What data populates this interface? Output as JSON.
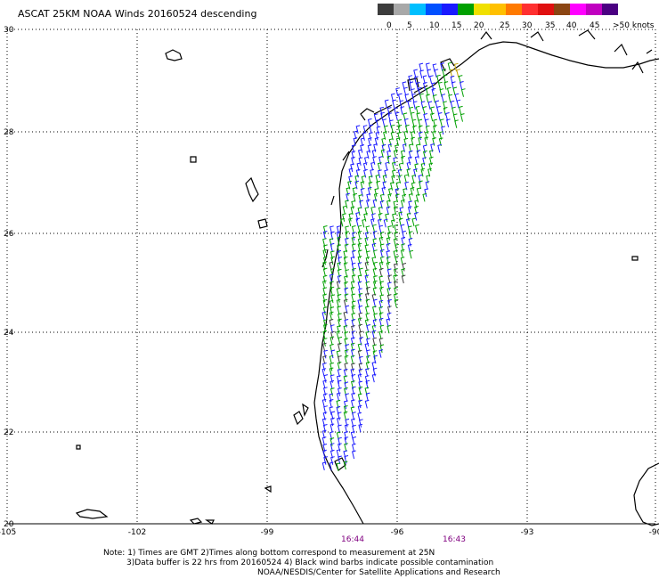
{
  "title": "ASCAT 25KM NOAA Winds 20160524 descending",
  "legend": {
    "colors": [
      "#3c3c3c",
      "#a8a8a8",
      "#00bfff",
      "#0050ff",
      "#1a1aff",
      "#00a000",
      "#f0e000",
      "#ffc000",
      "#ff7a00",
      "#ff3030",
      "#e01010",
      "#8b4513",
      "#ff00ff",
      "#c000c0",
      "#4b0082"
    ],
    "labels": [
      "0",
      "5",
      "10",
      "15",
      "20",
      "25",
      "30",
      "35",
      "40",
      "45",
      ">50 knots"
    ]
  },
  "map": {
    "lat_labels": [
      "30",
      "28",
      "26",
      "24",
      "22",
      "20"
    ],
    "lon_labels": [
      "-105",
      "-102",
      "-99",
      "-96",
      "-93",
      "-90"
    ],
    "times": [
      {
        "text": "16:44",
        "color": "#800080"
      },
      {
        "text": "16:43",
        "color": "#800080"
      }
    ]
  },
  "notes": {
    "line1": "Note: 1) Times are GMT 2)Times along bottom correspond to measurement at 25N",
    "line2": "3)Data buffer is 22 hrs from 20160524 4) Black wind barbs indicate possible contamination",
    "line3": "NOAA/NESDIS/Center for Satellite Applications and Research"
  }
}
